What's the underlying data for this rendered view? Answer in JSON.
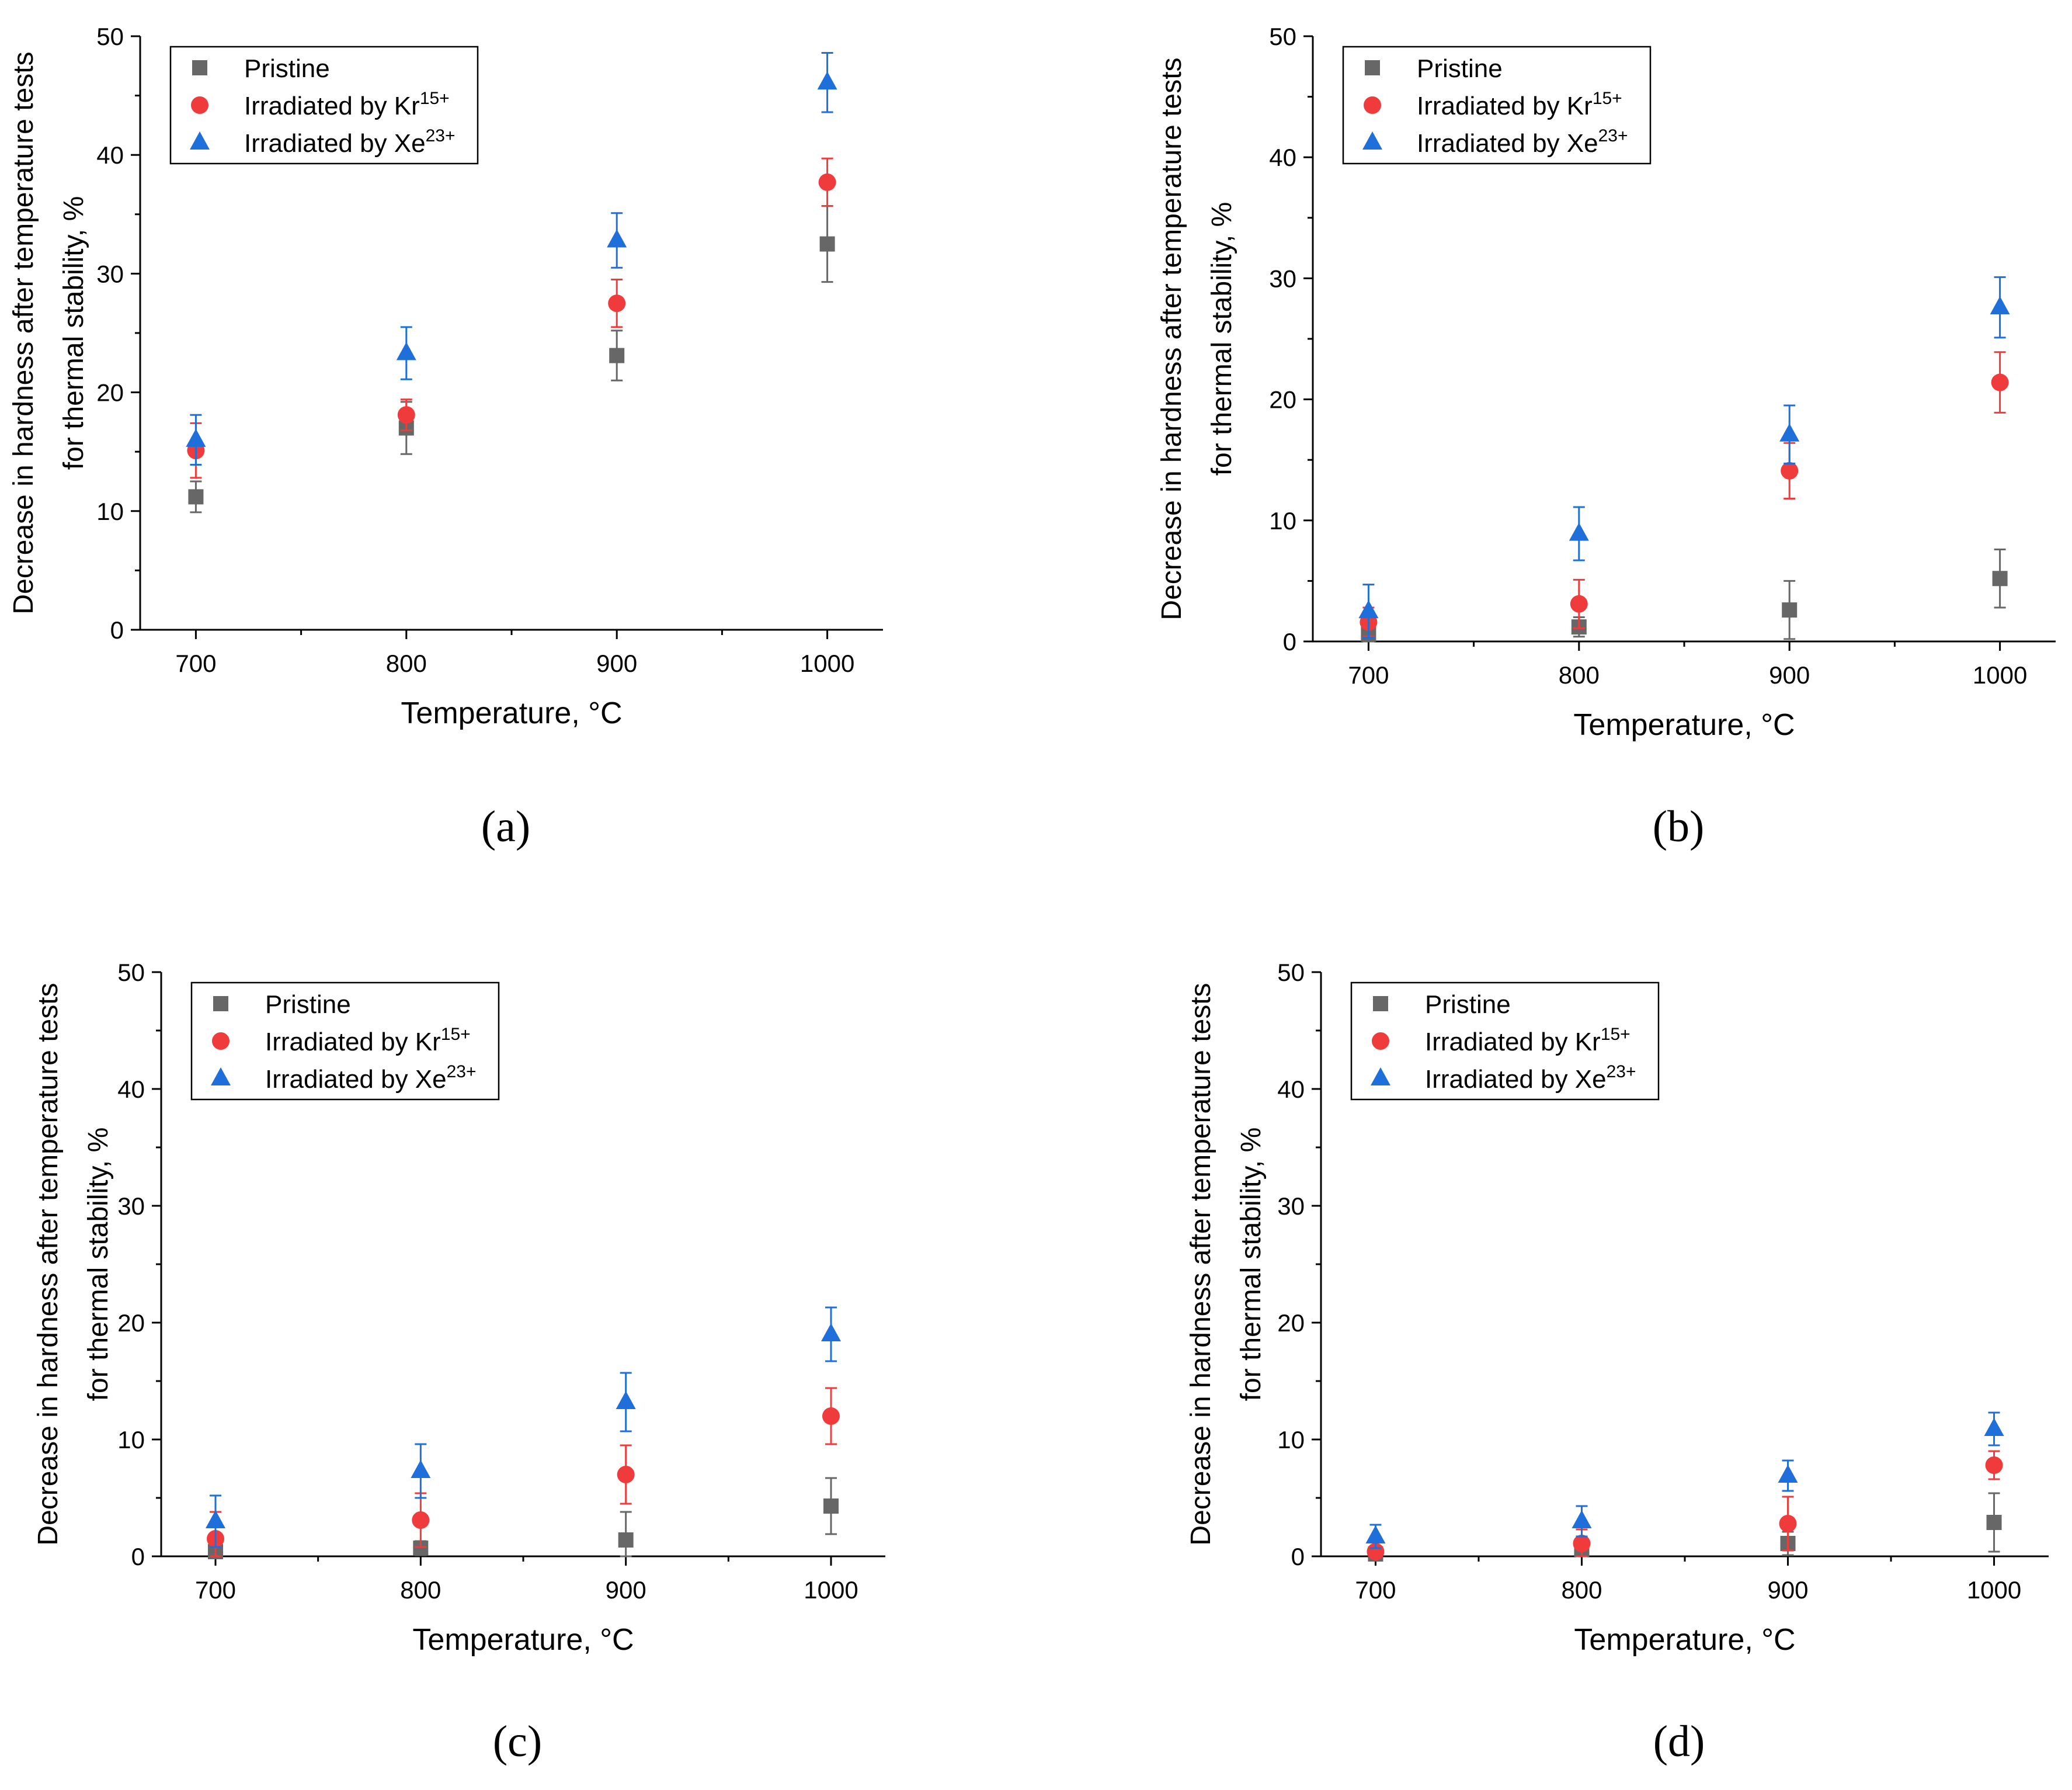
{
  "chart_data": [
    {
      "type": "scatter",
      "panel_label": "(a)",
      "xlabel": "Temperature, °C",
      "ylabel_line1": "Decrease in hardness after temperature tests",
      "ylabel_line2": "for thermal stability, %",
      "x_categories": [
        "700",
        "800",
        "900",
        "1000"
      ],
      "ylim": [
        0,
        50
      ],
      "y_ticks": [
        "0",
        "10",
        "20",
        "30",
        "40",
        "50"
      ],
      "legend_position": "top-left",
      "series": [
        {
          "name": "Pristine",
          "sup": "",
          "marker": "square",
          "color": "#676767",
          "values": [
            11.2,
            17.0,
            23.1,
            32.5
          ],
          "errors": [
            1.3,
            2.2,
            2.1,
            3.2
          ]
        },
        {
          "name": "Irradiated by Kr",
          "sup": "15+",
          "marker": "circle",
          "color": "#ef3b3b",
          "values": [
            15.1,
            18.1,
            27.5,
            37.7
          ],
          "errors": [
            2.3,
            1.3,
            2.0,
            2.0
          ]
        },
        {
          "name": "Irradiated by Xe",
          "sup": "23+",
          "marker": "triangle",
          "color": "#1e6fd9",
          "values": [
            16.0,
            23.3,
            32.8,
            46.1
          ],
          "errors": [
            2.1,
            2.2,
            2.3,
            2.5
          ]
        }
      ]
    },
    {
      "type": "scatter",
      "panel_label": "(b)",
      "xlabel": "Temperature, °C",
      "ylabel_line1": "Decrease in hardness after temperature tests",
      "ylabel_line2": "for thermal stability, %",
      "x_categories": [
        "700",
        "800",
        "900",
        "1000"
      ],
      "ylim": [
        0,
        50
      ],
      "y_ticks": [
        "0",
        "10",
        "20",
        "30",
        "40",
        "50"
      ],
      "legend_position": "top-left",
      "series": [
        {
          "name": "Pristine",
          "sup": "",
          "marker": "square",
          "color": "#676767",
          "values": [
            0.6,
            1.2,
            2.6,
            5.2
          ],
          "errors": [
            1.0,
            0.8,
            2.4,
            2.4
          ]
        },
        {
          "name": "Irradiated by Kr",
          "sup": "15+",
          "marker": "circle",
          "color": "#ef3b3b",
          "values": [
            1.6,
            3.1,
            14.1,
            21.4
          ],
          "errors": [
            1.2,
            2.0,
            2.3,
            2.5
          ]
        },
        {
          "name": "Irradiated by Xe",
          "sup": "23+",
          "marker": "triangle",
          "color": "#1e6fd9",
          "values": [
            2.5,
            8.9,
            17.1,
            27.6
          ],
          "errors": [
            2.2,
            2.2,
            2.4,
            2.5
          ]
        }
      ]
    },
    {
      "type": "scatter",
      "panel_label": "(c)",
      "xlabel": "Temperature, °C",
      "ylabel_line1": "Decrease in hardness after temperature tests",
      "ylabel_line2": "for thermal stability, %",
      "x_categories": [
        "700",
        "800",
        "900",
        "1000"
      ],
      "ylim": [
        0,
        50
      ],
      "y_ticks": [
        "0",
        "10",
        "20",
        "30",
        "40",
        "50"
      ],
      "legend_position": "top-left",
      "series": [
        {
          "name": "Pristine",
          "sup": "",
          "marker": "square",
          "color": "#676767",
          "values": [
            0.4,
            0.7,
            1.4,
            4.3
          ],
          "errors": [
            0.5,
            0.6,
            2.4,
            2.4
          ]
        },
        {
          "name": "Irradiated by Kr",
          "sup": "15+",
          "marker": "circle",
          "color": "#ef3b3b",
          "values": [
            1.5,
            3.1,
            7.0,
            12.0
          ],
          "errors": [
            2.3,
            2.3,
            2.5,
            2.4
          ]
        },
        {
          "name": "Irradiated by Xe",
          "sup": "23+",
          "marker": "triangle",
          "color": "#1e6fd9",
          "values": [
            3.0,
            7.3,
            13.2,
            19.0
          ],
          "errors": [
            2.2,
            2.3,
            2.5,
            2.3
          ]
        }
      ]
    },
    {
      "type": "scatter",
      "panel_label": "(d)",
      "xlabel": "Temperature, °C",
      "ylabel_line1": "Decrease in hardness after temperature tests",
      "ylabel_line2": "for thermal stability, %",
      "x_categories": [
        "700",
        "800",
        "900",
        "1000"
      ],
      "ylim": [
        0,
        50
      ],
      "y_ticks": [
        "0",
        "10",
        "20",
        "30",
        "40",
        "50"
      ],
      "legend_position": "top-left",
      "series": [
        {
          "name": "Pristine",
          "sup": "",
          "marker": "square",
          "color": "#676767",
          "values": [
            0.2,
            0.6,
            1.1,
            2.9
          ],
          "errors": [
            0.3,
            0.5,
            1.0,
            2.5
          ]
        },
        {
          "name": "Irradiated by Kr",
          "sup": "15+",
          "marker": "circle",
          "color": "#ef3b3b",
          "values": [
            0.4,
            1.1,
            2.8,
            7.8
          ],
          "errors": [
            1.2,
            1.2,
            2.3,
            1.2
          ]
        },
        {
          "name": "Irradiated by Xe",
          "sup": "23+",
          "marker": "triangle",
          "color": "#1e6fd9",
          "values": [
            1.7,
            3.0,
            6.9,
            10.9
          ],
          "errors": [
            1.0,
            1.3,
            1.3,
            1.4
          ]
        }
      ]
    }
  ]
}
